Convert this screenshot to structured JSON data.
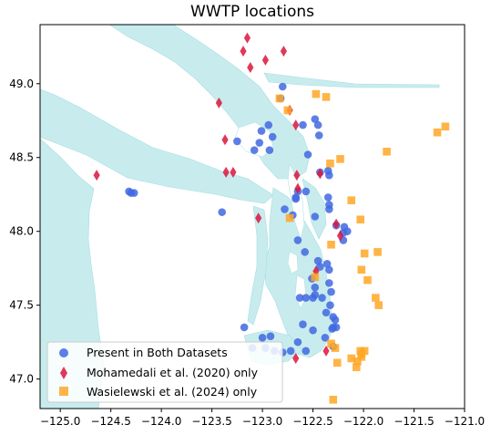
{
  "chart_data": {
    "type": "scatter",
    "title": "WWTP locations",
    "xlabel": "",
    "ylabel": "",
    "xlim": [
      -125.2,
      -121.0
    ],
    "ylim": [
      46.8,
      49.4
    ],
    "xticks": [
      -125.0,
      -124.5,
      -124.0,
      -123.5,
      -123.0,
      -122.5,
      -122.0,
      -121.5,
      -121.0
    ],
    "xtick_labels": [
      "−125.0",
      "−124.5",
      "−124.0",
      "−123.5",
      "−123.0",
      "−122.5",
      "−122.0",
      "−121.5",
      "−121.0"
    ],
    "yticks": [
      47.0,
      47.5,
      48.0,
      48.5,
      49.0
    ],
    "ytick_labels": [
      "47.0",
      "47.5",
      "48.0",
      "48.5",
      "49.0"
    ],
    "grid": false,
    "legend_position": "bottom-left",
    "water_color": "#c8ecee",
    "land_color": "#ffffff",
    "series": [
      {
        "name": "Present in Both Datasets",
        "marker": "circle",
        "color": "#4169e1",
        "points": [
          [
            -122.8,
            48.98
          ],
          [
            -122.82,
            48.9
          ],
          [
            -122.48,
            48.76
          ],
          [
            -122.6,
            48.72
          ],
          [
            -122.45,
            48.72
          ],
          [
            -122.94,
            48.72
          ],
          [
            -123.01,
            48.68
          ],
          [
            -122.9,
            48.64
          ],
          [
            -122.44,
            48.65
          ],
          [
            -123.08,
            48.55
          ],
          [
            -123.03,
            48.6
          ],
          [
            -122.93,
            48.55
          ],
          [
            -123.25,
            48.61
          ],
          [
            -122.55,
            48.52
          ],
          [
            -122.43,
            48.4
          ],
          [
            -122.35,
            48.41
          ],
          [
            -122.34,
            48.38
          ],
          [
            -122.57,
            48.27
          ],
          [
            -122.65,
            48.27
          ],
          [
            -122.67,
            48.23
          ],
          [
            -122.67,
            48.22
          ],
          [
            -122.35,
            48.23
          ],
          [
            -122.34,
            48.18
          ],
          [
            -122.34,
            48.15
          ],
          [
            -122.27,
            48.04
          ],
          [
            -122.19,
            48.03
          ],
          [
            -122.16,
            48.0
          ],
          [
            -122.2,
            47.99
          ],
          [
            -122.2,
            47.94
          ],
          [
            -122.48,
            48.1
          ],
          [
            -122.7,
            48.11
          ],
          [
            -122.78,
            48.15
          ],
          [
            -124.32,
            48.27
          ],
          [
            -124.27,
            48.26
          ],
          [
            -124.3,
            48.26
          ],
          [
            -123.4,
            48.13
          ],
          [
            -122.65,
            47.94
          ],
          [
            -122.58,
            47.86
          ],
          [
            -122.45,
            47.8
          ],
          [
            -122.43,
            47.76
          ],
          [
            -122.36,
            47.78
          ],
          [
            -122.34,
            47.74
          ],
          [
            -122.51,
            47.68
          ],
          [
            -122.48,
            47.62
          ],
          [
            -122.34,
            47.65
          ],
          [
            -122.32,
            47.59
          ],
          [
            -122.57,
            47.55
          ],
          [
            -122.63,
            47.55
          ],
          [
            -122.5,
            47.55
          ],
          [
            -122.48,
            47.57
          ],
          [
            -122.41,
            47.55
          ],
          [
            -122.33,
            47.5
          ],
          [
            -122.37,
            47.45
          ],
          [
            -122.3,
            47.42
          ],
          [
            -122.28,
            47.4
          ],
          [
            -122.27,
            47.35
          ],
          [
            -122.3,
            47.35
          ],
          [
            -122.5,
            47.33
          ],
          [
            -122.6,
            47.37
          ],
          [
            -122.65,
            47.25
          ],
          [
            -122.38,
            47.28
          ],
          [
            -122.31,
            47.34
          ],
          [
            -123.1,
            47.21
          ],
          [
            -123.0,
            47.28
          ],
          [
            -122.92,
            47.29
          ],
          [
            -122.97,
            47.21
          ],
          [
            -122.88,
            47.19
          ],
          [
            -122.8,
            47.18
          ],
          [
            -122.72,
            47.19
          ],
          [
            -122.57,
            47.19
          ],
          [
            -122.3,
            47.22
          ],
          [
            -123.18,
            47.35
          ]
        ]
      },
      {
        "name": "Mohamedali et al. (2020) only",
        "marker": "diamond",
        "color": "#dc143c",
        "points": [
          [
            -123.15,
            49.31
          ],
          [
            -122.79,
            49.22
          ],
          [
            -123.19,
            49.22
          ],
          [
            -123.12,
            49.11
          ],
          [
            -122.97,
            49.16
          ],
          [
            -123.43,
            48.87
          ],
          [
            -122.73,
            48.82
          ],
          [
            -122.67,
            48.72
          ],
          [
            -123.37,
            48.62
          ],
          [
            -122.43,
            48.39
          ],
          [
            -123.36,
            48.4
          ],
          [
            -123.29,
            48.4
          ],
          [
            -124.64,
            48.38
          ],
          [
            -122.66,
            48.38
          ],
          [
            -122.65,
            48.29
          ],
          [
            -123.04,
            48.09
          ],
          [
            -122.27,
            48.05
          ],
          [
            -122.23,
            47.97
          ],
          [
            -122.47,
            47.73
          ],
          [
            -122.37,
            47.19
          ],
          [
            -122.67,
            47.14
          ]
        ]
      },
      {
        "name": "Wasielewski et al. (2024) only",
        "marker": "square",
        "color": "#ffa726",
        "points": [
          [
            -122.83,
            48.9
          ],
          [
            -122.47,
            48.93
          ],
          [
            -122.37,
            48.91
          ],
          [
            -122.75,
            48.82
          ],
          [
            -121.19,
            48.71
          ],
          [
            -121.27,
            48.67
          ],
          [
            -121.77,
            48.54
          ],
          [
            -122.23,
            48.49
          ],
          [
            -122.33,
            48.46
          ],
          [
            -122.12,
            48.21
          ],
          [
            -122.03,
            48.08
          ],
          [
            -122.73,
            48.09
          ],
          [
            -122.32,
            47.91
          ],
          [
            -121.99,
            47.85
          ],
          [
            -121.86,
            47.86
          ],
          [
            -122.02,
            47.74
          ],
          [
            -121.96,
            47.67
          ],
          [
            -122.48,
            47.69
          ],
          [
            -121.88,
            47.55
          ],
          [
            -121.85,
            47.5
          ],
          [
            -122.32,
            47.24
          ],
          [
            -122.28,
            47.21
          ],
          [
            -122.26,
            47.11
          ],
          [
            -122.12,
            47.14
          ],
          [
            -122.02,
            47.17
          ],
          [
            -122.03,
            47.19
          ],
          [
            -121.99,
            47.19
          ],
          [
            -122.02,
            47.15
          ],
          [
            -122.06,
            47.12
          ],
          [
            -122.07,
            47.08
          ],
          [
            -122.3,
            46.86
          ]
        ]
      }
    ]
  }
}
